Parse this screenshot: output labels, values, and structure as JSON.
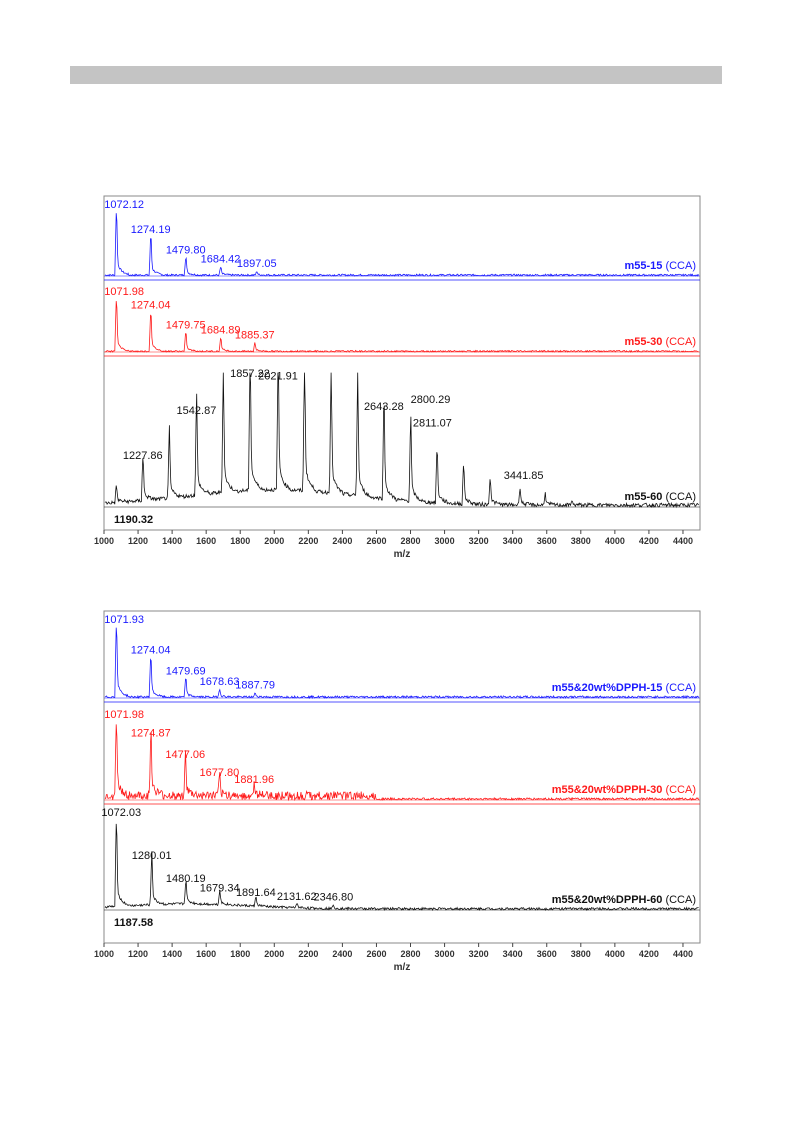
{
  "colors": {
    "blue": "#1a1aff",
    "red": "#ff1a1a",
    "black": "#111111",
    "axis": "#444444",
    "header": "#c4c4c4"
  },
  "chart_data": [
    {
      "type": "line",
      "xlabel": "m/z",
      "ylabel": "",
      "xlim": [
        1000,
        4500
      ],
      "xticks": [
        "1000",
        "1200",
        "1400",
        "1600",
        "1800",
        "2000",
        "2200",
        "2400",
        "2600",
        "2800",
        "3000",
        "3200",
        "3400",
        "3600",
        "3800",
        "4000",
        "4200",
        "4400"
      ],
      "series": [
        {
          "name": "m55-15",
          "suffix": "(CCA)",
          "color": "blue",
          "peaks": [
            [
              1072.12,
              1.0
            ],
            [
              1274.19,
              0.6
            ],
            [
              1479.8,
              0.27
            ],
            [
              1684.42,
              0.12
            ],
            [
              1897.05,
              0.05
            ]
          ],
          "labels": [
            "1072.12",
            "1274.19",
            "1479.80",
            "1684.42",
            "1897.05"
          ]
        },
        {
          "name": "m55-30",
          "suffix": "(CCA)",
          "color": "red",
          "peaks": [
            [
              1071.98,
              1.0
            ],
            [
              1274.04,
              0.75
            ],
            [
              1479.75,
              0.35
            ],
            [
              1684.89,
              0.25
            ],
            [
              1885.37,
              0.15
            ]
          ],
          "labels": [
            "1071.98",
            "1274.04",
            "1479.75",
            "1684.89",
            "1885.37"
          ]
        },
        {
          "name": "m55-60",
          "suffix": "(CCA)",
          "color": "black",
          "peaks": [
            [
              1072,
              0.12
            ],
            [
              1227.86,
              0.33
            ],
            [
              1383,
              0.46
            ],
            [
              1542.87,
              0.68
            ],
            [
              1700,
              0.82
            ],
            [
              1857.22,
              0.97
            ],
            [
              2021.91,
              0.95
            ],
            [
              2177,
              0.92
            ],
            [
              2333,
              0.87
            ],
            [
              2489,
              0.8
            ],
            [
              2643.28,
              0.71
            ],
            [
              2800.29,
              0.58
            ],
            [
              2811.07,
              0.0
            ],
            [
              2955,
              0.4
            ],
            [
              3111,
              0.29
            ],
            [
              3267,
              0.2
            ],
            [
              3441.85,
              0.12
            ],
            [
              3590,
              0.08
            ],
            [
              3745,
              0.03
            ]
          ],
          "labels": [
            "1227.86",
            "1542.87",
            "1857.22",
            "2021.91",
            "2643.28",
            "2800.29",
            "2811.07",
            "3441.85"
          ],
          "baseline_label": "1190.32"
        }
      ]
    },
    {
      "type": "line",
      "xlabel": "m/z",
      "ylabel": "",
      "xlim": [
        1000,
        4500
      ],
      "xticks": [
        "1000",
        "1200",
        "1400",
        "1600",
        "1800",
        "2000",
        "2200",
        "2400",
        "2600",
        "2800",
        "3000",
        "3200",
        "3400",
        "3600",
        "3800",
        "4000",
        "4200",
        "4400"
      ],
      "series": [
        {
          "name": "m55&20wt%DPPH-15",
          "suffix": "(CCA)",
          "color": "blue",
          "peaks": [
            [
              1071.93,
              1.0
            ],
            [
              1274.04,
              0.55
            ],
            [
              1479.69,
              0.25
            ],
            [
              1678.63,
              0.1
            ],
            [
              1887.79,
              0.05
            ]
          ],
          "labels": [
            "1071.93",
            "1274.04",
            "1479.69",
            "1678.63",
            "1887.79"
          ]
        },
        {
          "name": "m55&20wt%DPPH-30",
          "suffix": "(CCA)",
          "color": "red",
          "peaks": [
            [
              1071.98,
              1.0
            ],
            [
              1274.87,
              0.8
            ],
            [
              1477.06,
              0.5
            ],
            [
              1677.8,
              0.25
            ],
            [
              1881.96,
              0.15
            ]
          ],
          "labels": [
            "1071.98",
            "1274.87",
            "1477.06",
            "1677.80",
            "1881.96"
          ]
        },
        {
          "name": "m55&20wt%DPPH-60",
          "suffix": "(CCA)",
          "color": "black",
          "peaks": [
            [
              1072.03,
              1.0
            ],
            [
              1280.01,
              0.55
            ],
            [
              1480.19,
              0.27
            ],
            [
              1679.34,
              0.15
            ],
            [
              1891.64,
              0.1
            ],
            [
              2131.62,
              0.05
            ],
            [
              2346.8,
              0.04
            ]
          ],
          "labels": [
            "1072.03",
            "1280.01",
            "1480.19",
            "1679.34",
            "1891.64",
            "2131.62",
            "2346.80"
          ],
          "baseline_label": "1187.58"
        }
      ]
    }
  ]
}
